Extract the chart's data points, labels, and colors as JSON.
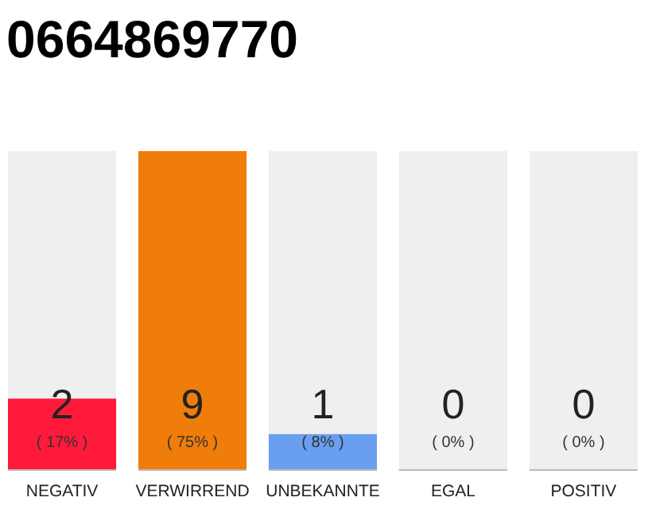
{
  "chart_data": {
    "type": "bar",
    "title": "0664869770",
    "stacked": true,
    "categories": [
      "NEGATIV",
      "VERWIRREND",
      "UNBEKANNTE",
      "EGAL",
      "POSITIV"
    ],
    "series": [
      {
        "values": [
          2,
          9,
          1,
          0,
          0
        ],
        "colors": [
          "#ff1a3c",
          "#f07d0a",
          "#6a9ff0",
          "#c8c8c8",
          "#c8c8c8"
        ],
        "value_labels": [
          "2",
          "9",
          "1",
          "0",
          "0"
        ]
      },
      {
        "values": [
          7,
          0,
          8,
          9,
          9
        ],
        "color": "#efefef"
      }
    ],
    "annotations": [
      "( 17% )",
      "( 75% )",
      "( 8% )",
      "( 0% )",
      "( 0% )"
    ]
  }
}
